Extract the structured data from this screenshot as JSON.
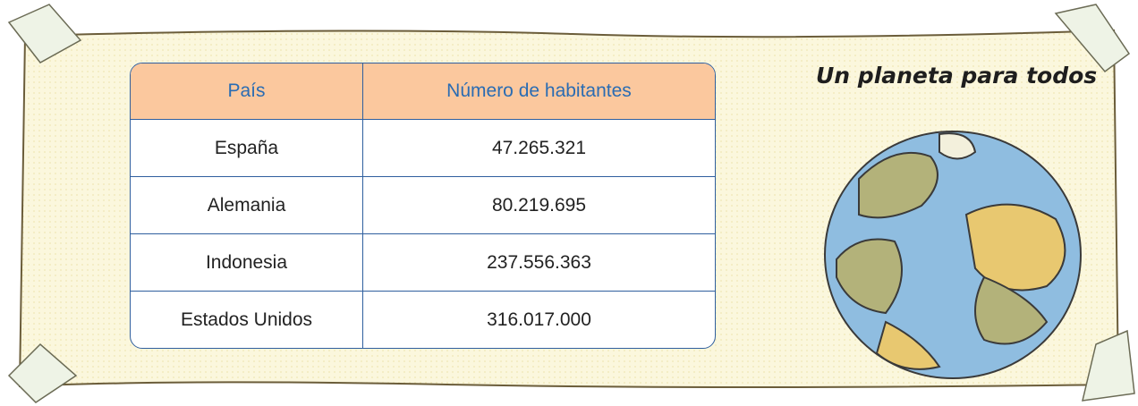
{
  "title": "Un planeta para todos",
  "table": {
    "header": [
      "País",
      "Número de habitantes"
    ],
    "rows": [
      [
        "España",
        "47.265.321"
      ],
      [
        "Alemania",
        "80.219.695"
      ],
      [
        "Indonesia",
        "237.556.363"
      ],
      [
        "Estados Unidos",
        "316.017.000"
      ]
    ]
  }
}
